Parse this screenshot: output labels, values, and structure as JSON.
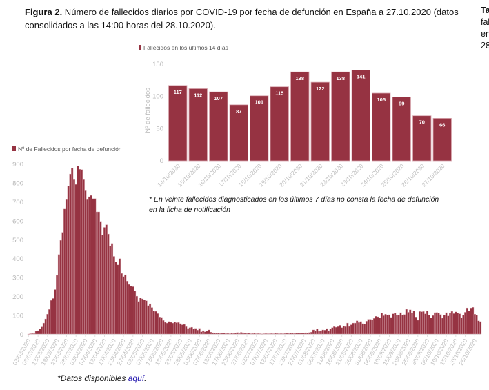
{
  "caption": {
    "label": "Figura 2.",
    "text": " Número de fallecidos diarios por COVID-19 por fecha de defunción en España a 27.10.2020 (datos consolidados a las 14:00 horas del 28.10.2020)."
  },
  "side_text": [
    "Ta",
    "fal",
    "en",
    "28"
  ],
  "note": "* En veinte fallecidos diagnosticados en los últimos 7 días no consta la fecha de defunción en la ficha de notificación",
  "footer": {
    "prefix": "*Datos disponibles ",
    "link": "aquí",
    "suffix": "."
  },
  "colors": {
    "bar": "#963342",
    "bar_edge": "#d9a9b1"
  },
  "chart_data": [
    {
      "type": "bar",
      "title": "",
      "legend": "Nº de Fallecidos por fecha de defunción",
      "legend_position": "top-left",
      "xlabel": "",
      "ylabel": "",
      "ylim": [
        0,
        900
      ],
      "yticks": [
        0,
        100,
        200,
        300,
        400,
        500,
        600,
        700,
        800,
        900
      ],
      "x_start": "03/03/2020",
      "x_end": "27/10/2020",
      "tick_labels": [
        "03/03/2020",
        "08/03/2020",
        "13/03/2020",
        "18/03/2020",
        "23/03/2020",
        "28/03/2020",
        "02/04/2020",
        "07/04/2020",
        "12/04/2020",
        "17/04/2020",
        "22/04/2020",
        "27/04/2020",
        "02/05/2020",
        "07/05/2020",
        "13/05/2020",
        "18/05/2020",
        "23/05/2020",
        "28/05/2020",
        "02/06/2020",
        "07/06/2020",
        "12/06/2020",
        "17/06/2020",
        "22/06/2020",
        "27/06/2020",
        "02/07/2020",
        "07/07/2020",
        "12/07/2020",
        "17/07/2020",
        "22/07/2020",
        "27/07/2020",
        "01/08/2020",
        "06/08/2020",
        "11/08/2020",
        "16/08/2020",
        "21/08/2020",
        "26/08/2020",
        "31/08/2020",
        "05/09/2020",
        "10/09/2020",
        "15/09/2020",
        "20/09/2020",
        "25/09/2020",
        "30/09/2020",
        "05/10/2020",
        "10/10/2020",
        "15/10/2020",
        "20/10/2020",
        "25/10/2020"
      ],
      "values": [
        0,
        2,
        3,
        3,
        15,
        18,
        27,
        38,
        58,
        80,
        105,
        130,
        178,
        188,
        235,
        310,
        420,
        495,
        537,
        660,
        710,
        782,
        845,
        877,
        815,
        790,
        888,
        870,
        868,
        815,
        760,
        710,
        725,
        732,
        715,
        715,
        645,
        645,
        595,
        522,
        563,
        577,
        528,
        465,
        478,
        410,
        380,
        365,
        398,
        320,
        303,
        313,
        280,
        262,
        252,
        250,
        228,
        200,
        172,
        192,
        186,
        180,
        176,
        150,
        160,
        140,
        122,
        120,
        108,
        90,
        88,
        72,
        62,
        58,
        66,
        62,
        58,
        64,
        60,
        61,
        55,
        49,
        51,
        39,
        30,
        34,
        36,
        27,
        30,
        21,
        30,
        12,
        18,
        12,
        15,
        22,
        10,
        7,
        5,
        4,
        5,
        3,
        4,
        5,
        3,
        4,
        2,
        4,
        3,
        5,
        8,
        3,
        9,
        7,
        4,
        3,
        6,
        2,
        3,
        4,
        2,
        3,
        2,
        1,
        2,
        3,
        2,
        2,
        3,
        2,
        4,
        3,
        2,
        3,
        2,
        3,
        4,
        3,
        5,
        4,
        3,
        6,
        5,
        4,
        6,
        5,
        7,
        6,
        8,
        10,
        22,
        18,
        27,
        15,
        18,
        22,
        21,
        29,
        18,
        27,
        34,
        39,
        36,
        39,
        46,
        34,
        43,
        39,
        58,
        40,
        49,
        58,
        58,
        70,
        61,
        66,
        55,
        52,
        68,
        78,
        78,
        74,
        83,
        94,
        91,
        85,
        112,
        97,
        105,
        100,
        102,
        88,
        107,
        112,
        100,
        100,
        113,
        100,
        103,
        131,
        115,
        128,
        111,
        123,
        90,
        73,
        119,
        118,
        119,
        107,
        123,
        100,
        85,
        98,
        113,
        114,
        110,
        103,
        84,
        100,
        113,
        96,
        110,
        120,
        108,
        117,
        112,
        107,
        87,
        101,
        115,
        138,
        122,
        138,
        141,
        105,
        99,
        70,
        66
      ]
    },
    {
      "type": "bar",
      "title": "",
      "legend": "Fallecidos en los últimos 14 días",
      "legend_position": "top-left",
      "xlabel": "",
      "ylabel": "Nº de fallecidos",
      "ylim": [
        0,
        150
      ],
      "yticks": [
        0,
        50,
        100,
        150
      ],
      "categories": [
        "14/10/2020",
        "15/10/2020",
        "16/10/2020",
        "17/10/2020",
        "18/10/2020",
        "19/10/2020",
        "20/10/2020",
        "21/10/2020",
        "22/10/2020",
        "23/10/2020",
        "24/10/2020",
        "25/10/2020",
        "26/10/2020",
        "27/10/2020"
      ],
      "values": [
        117,
        112,
        107,
        87,
        101,
        115,
        138,
        122,
        138,
        141,
        105,
        99,
        70,
        66
      ]
    }
  ]
}
